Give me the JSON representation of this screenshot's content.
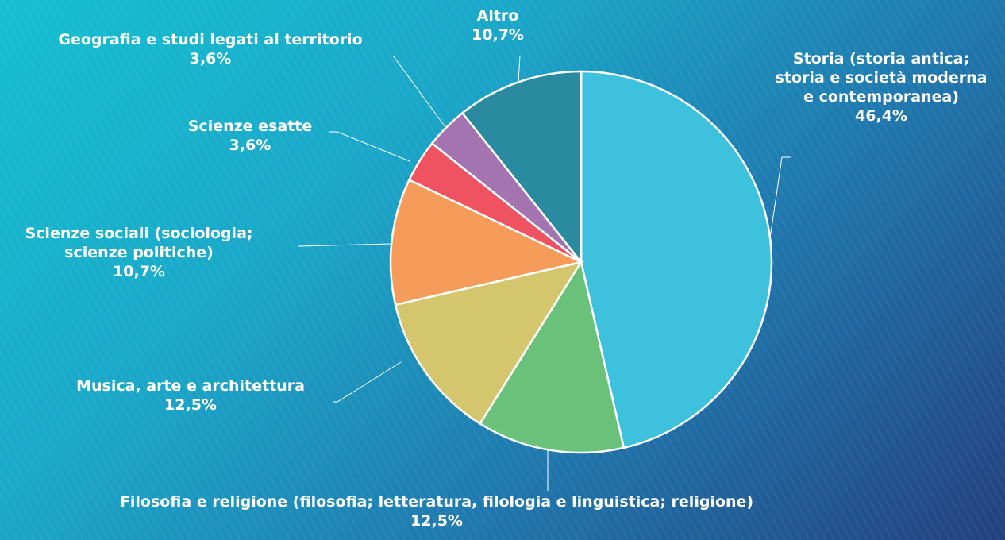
{
  "chart_data": {
    "type": "pie",
    "categories": [
      "Storia (storia antica; storia e società moderna e contemporanea)",
      "Filosofia e religione (filosofia; letteratura, filologia e linguistica; religione)",
      "Musica, arte e architettura",
      "Scienze sociali (sociologia; scienze politiche)",
      "Scienze esatte",
      "Geografia e studi legati al territorio",
      "Altro"
    ],
    "values": [
      46.4,
      12.5,
      12.5,
      10.7,
      3.6,
      3.6,
      10.7
    ],
    "value_labels": [
      "46,4%",
      "12,5%",
      "12,5%",
      "10,7%",
      "3,6%",
      "3,6%",
      "10,7%"
    ],
    "colors": [
      "#3ec1dd",
      "#6ac17a",
      "#d4c66c",
      "#f59c5a",
      "#ef5261",
      "#a374b0",
      "#2a8aa0"
    ]
  }
}
